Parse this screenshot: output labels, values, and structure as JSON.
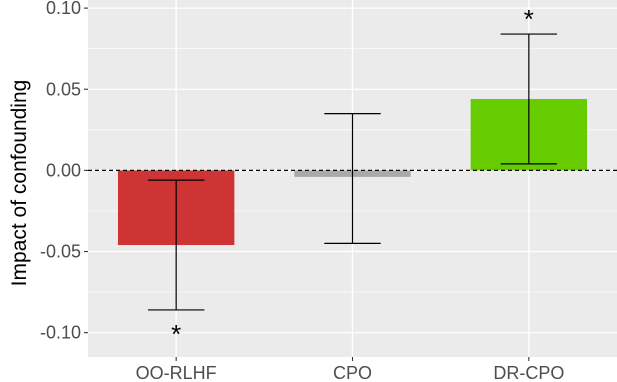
{
  "chart_data": {
    "type": "bar",
    "title": "",
    "xlabel": "",
    "ylabel": "Impact of confounding",
    "categories": [
      "OO-RLHF",
      "CPO",
      "DR-CPO"
    ],
    "values": [
      -0.046,
      -0.004,
      0.044
    ],
    "error_lower": [
      -0.086,
      -0.045,
      0.004
    ],
    "error_upper": [
      -0.006,
      0.035,
      0.084
    ],
    "significance": [
      "*",
      "",
      "*"
    ],
    "significance_position": [
      "below",
      "none",
      "above"
    ],
    "colors": [
      "#cf3435",
      "#a9a9a9",
      "#66cc00"
    ],
    "ylim": [
      -0.115,
      0.105
    ],
    "yticks": [
      -0.1,
      -0.05,
      0.0,
      0.05,
      0.1
    ],
    "ytick_labels": [
      "-0.10",
      "-0.05",
      "0.00",
      "0.05",
      "0.10"
    ],
    "reference_line": {
      "y": 0,
      "style": "dashed"
    },
    "grid": true,
    "background": "#ebebeb",
    "legend": "none"
  }
}
